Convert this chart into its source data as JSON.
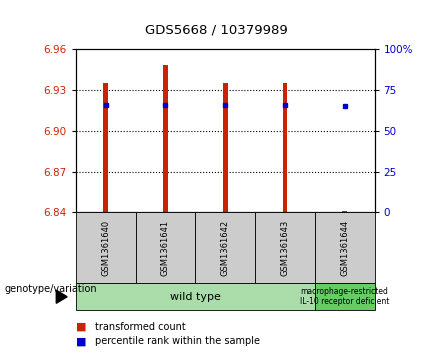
{
  "title": "GDS5668 / 10379989",
  "samples": [
    "GSM1361640",
    "GSM1361641",
    "GSM1361642",
    "GSM1361643",
    "GSM1361644"
  ],
  "bar_bottom": 6.84,
  "bar_tops": [
    6.935,
    6.948,
    6.935,
    6.935,
    6.841
  ],
  "percentile_values": [
    65.5,
    65.5,
    65.5,
    65.5,
    65.0
  ],
  "ylim_left": [
    6.84,
    6.96
  ],
  "ylim_right": [
    0,
    100
  ],
  "yticks_left": [
    6.84,
    6.87,
    6.9,
    6.93,
    6.96
  ],
  "yticks_right": [
    0,
    25,
    50,
    75,
    100
  ],
  "bar_color": "#cc2200",
  "dot_color": "#0000cc",
  "bg_color": "#ffffff",
  "wild_type_label": "wild type",
  "mutant_label": "macrophage-restricted\nIL-10 receptor deficient",
  "wild_type_color": "#aaddaa",
  "mutant_color": "#66cc66",
  "genotype_label": "genotype/variation",
  "legend_bar_label": "transformed count",
  "legend_dot_label": "percentile rank within the sample",
  "bar_width": 0.08,
  "sample_bg_color": "#cccccc",
  "n_wild_type": 4,
  "n_mutant": 1
}
